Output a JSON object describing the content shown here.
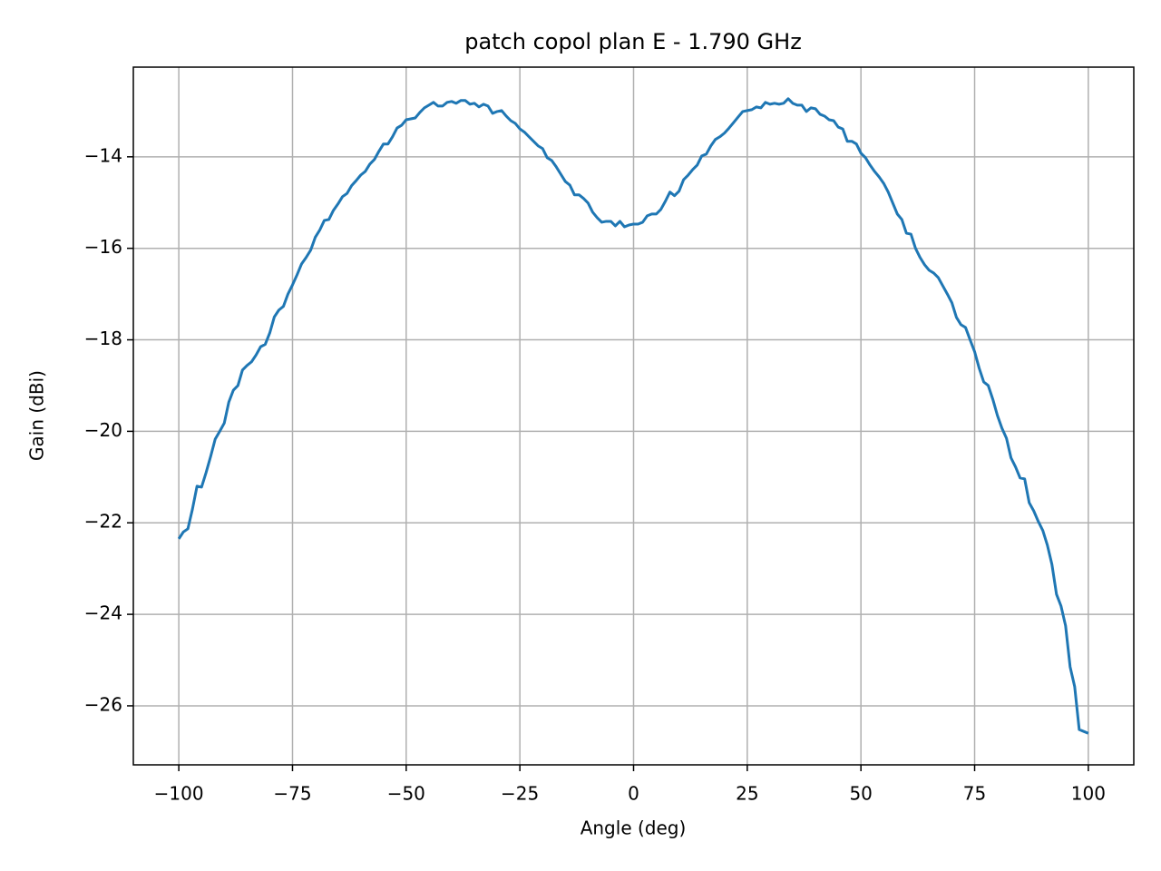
{
  "chart_data": {
    "type": "line",
    "title": "patch copol plan E - 1.790 GHz",
    "x_label": "Angle (deg)",
    "y_label": "Gain (dBi)",
    "x": [
      -100,
      -99,
      -98,
      -97,
      -96,
      -95,
      -94,
      -93,
      -92,
      -91,
      -90,
      -89,
      -88,
      -87,
      -86,
      -85,
      -84,
      -83,
      -82,
      -81,
      -80,
      -79,
      -78,
      -77,
      -76,
      -75,
      -74,
      -73,
      -72,
      -71,
      -70,
      -69,
      -68,
      -67,
      -66,
      -65,
      -64,
      -63,
      -62,
      -61,
      -60,
      -59,
      -58,
      -57,
      -56,
      -55,
      -54,
      -53,
      -52,
      -51,
      -50,
      -49,
      -48,
      -47,
      -46,
      -45,
      -44,
      -43,
      -42,
      -41,
      -40,
      -39,
      -38,
      -37,
      -36,
      -35,
      -34,
      -33,
      -32,
      -31,
      -30,
      -29,
      -28,
      -27,
      -26,
      -25,
      -24,
      -23,
      -22,
      -21,
      -20,
      -19,
      -18,
      -17,
      -16,
      -15,
      -14,
      -13,
      -12,
      -11,
      -10,
      -9,
      -8,
      -7,
      -6,
      -5,
      -4,
      -3,
      -2,
      -1,
      0,
      1,
      2,
      3,
      4,
      5,
      6,
      7,
      8,
      9,
      10,
      11,
      12,
      13,
      14,
      15,
      16,
      17,
      18,
      19,
      20,
      21,
      22,
      23,
      24,
      25,
      26,
      27,
      28,
      29,
      30,
      31,
      32,
      33,
      34,
      35,
      36,
      37,
      38,
      39,
      40,
      41,
      42,
      43,
      44,
      45,
      46,
      47,
      48,
      49,
      50,
      51,
      52,
      53,
      54,
      55,
      56,
      57,
      58,
      59,
      60,
      61,
      62,
      63,
      64,
      65,
      66,
      67,
      68,
      69,
      70,
      71,
      72,
      73,
      74,
      75,
      76,
      77,
      78,
      79,
      80,
      81,
      82,
      83,
      84,
      85,
      86,
      87,
      88,
      89,
      90,
      91,
      92,
      93,
      94,
      95,
      96,
      97,
      98,
      99,
      100
    ],
    "series": [
      {
        "color": "#1f77b4",
        "values": [
          -22.35,
          -22.2,
          -22.13,
          -21.7,
          -21.2,
          -21.22,
          -20.9,
          -20.55,
          -20.17,
          -20.0,
          -19.82,
          -19.36,
          -19.1,
          -19.0,
          -18.66,
          -18.56,
          -18.48,
          -18.33,
          -18.15,
          -18.1,
          -17.85,
          -17.5,
          -17.35,
          -17.27,
          -17.0,
          -16.8,
          -16.58,
          -16.34,
          -16.2,
          -16.04,
          -15.76,
          -15.6,
          -15.39,
          -15.37,
          -15.17,
          -15.03,
          -14.87,
          -14.8,
          -14.63,
          -14.52,
          -14.4,
          -14.32,
          -14.16,
          -14.06,
          -13.88,
          -13.72,
          -13.72,
          -13.56,
          -13.37,
          -13.31,
          -13.19,
          -13.17,
          -13.15,
          -13.03,
          -12.93,
          -12.87,
          -12.81,
          -12.89,
          -12.89,
          -12.81,
          -12.79,
          -12.83,
          -12.77,
          -12.77,
          -12.85,
          -12.83,
          -12.91,
          -12.85,
          -12.89,
          -13.05,
          -13.01,
          -12.99,
          -13.11,
          -13.21,
          -13.27,
          -13.39,
          -13.46,
          -13.56,
          -13.66,
          -13.76,
          -13.82,
          -14.02,
          -14.08,
          -14.22,
          -14.38,
          -14.54,
          -14.62,
          -14.83,
          -14.83,
          -14.91,
          -15.01,
          -15.21,
          -15.33,
          -15.43,
          -15.41,
          -15.41,
          -15.51,
          -15.41,
          -15.53,
          -15.49,
          -15.47,
          -15.47,
          -15.43,
          -15.29,
          -15.25,
          -15.25,
          -15.15,
          -14.97,
          -14.77,
          -14.85,
          -14.75,
          -14.5,
          -14.4,
          -14.28,
          -14.18,
          -13.98,
          -13.94,
          -13.76,
          -13.62,
          -13.56,
          -13.48,
          -13.37,
          -13.25,
          -13.13,
          -13.01,
          -12.99,
          -12.97,
          -12.91,
          -12.93,
          -12.81,
          -12.85,
          -12.83,
          -12.85,
          -12.83,
          -12.73,
          -12.83,
          -12.87,
          -12.87,
          -13.01,
          -12.93,
          -12.95,
          -13.07,
          -13.11,
          -13.19,
          -13.21,
          -13.35,
          -13.39,
          -13.66,
          -13.66,
          -13.72,
          -13.92,
          -14.02,
          -14.18,
          -14.32,
          -14.44,
          -14.58,
          -14.77,
          -15.01,
          -15.25,
          -15.37,
          -15.67,
          -15.69,
          -16.0,
          -16.2,
          -16.36,
          -16.48,
          -16.54,
          -16.64,
          -16.82,
          -17.0,
          -17.19,
          -17.51,
          -17.67,
          -17.73,
          -18.0,
          -18.26,
          -18.62,
          -18.92,
          -19.0,
          -19.3,
          -19.65,
          -19.93,
          -20.15,
          -20.58,
          -20.78,
          -21.02,
          -21.04,
          -21.56,
          -21.74,
          -21.97,
          -22.17,
          -22.49,
          -22.91,
          -23.56,
          -23.82,
          -24.25,
          -25.15,
          -25.58,
          -26.52,
          -26.56,
          -26.6
        ]
      }
    ],
    "xlim": [
      -110,
      110
    ],
    "ylim": [
      -27.29,
      -12.04
    ],
    "xticks": [
      {
        "value": -100,
        "label": "−100"
      },
      {
        "value": -75,
        "label": "−75"
      },
      {
        "value": -50,
        "label": "−50"
      },
      {
        "value": -25,
        "label": "−25"
      },
      0,
      25,
      50,
      75,
      100
    ],
    "yticks": [
      {
        "value": -26,
        "label": "−26"
      },
      {
        "value": -24,
        "label": "−24"
      },
      {
        "value": -22,
        "label": "−22"
      },
      {
        "value": -20,
        "label": "−20"
      },
      {
        "value": -18,
        "label": "−18"
      },
      {
        "value": -16,
        "label": "−16"
      },
      {
        "value": -14,
        "label": "−14"
      }
    ],
    "grid": true
  }
}
